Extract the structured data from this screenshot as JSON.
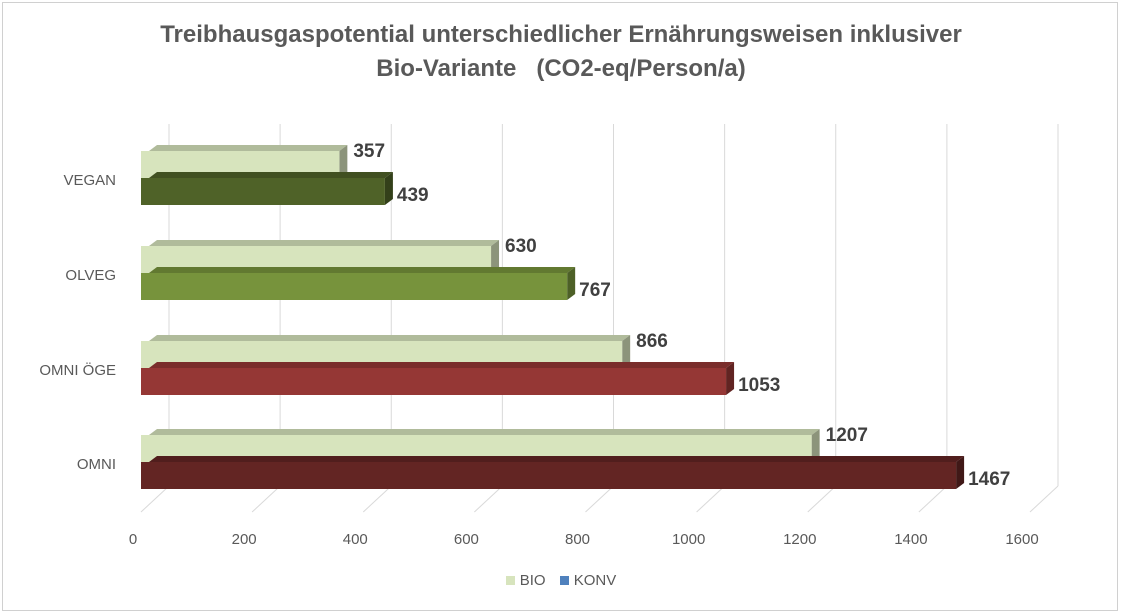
{
  "chart_data": {
    "type": "bar",
    "orientation": "horizontal",
    "title": "Treibhausgaspotential unterschiedlicher Ernährungsweisen inklusiver",
    "subtitle": "Bio-Variante   (CO2-eq/Person/a)",
    "categories": [
      "VEGAN",
      "OLVEG",
      "OMNI ÖGE",
      "OMNI"
    ],
    "series": [
      {
        "name": "BIO",
        "values": [
          357,
          630,
          866,
          1207
        ]
      },
      {
        "name": "KONV",
        "values": [
          439,
          767,
          1053,
          1467
        ]
      }
    ],
    "xlim": [
      0,
      1600
    ],
    "xticks": [
      "0",
      "200",
      "400",
      "600",
      "800",
      "1000",
      "1200",
      "1400",
      "1600"
    ],
    "data_labels": true,
    "grid": true,
    "three_d": true,
    "legend": "bottom"
  },
  "colors": {
    "bio": "#d7e4bd",
    "legend_bio": "#d7e4bd",
    "legend_konv": "#4f81bd",
    "konv_by_category": [
      "#4f6228",
      "#77933c",
      "#953735",
      "#632523"
    ]
  }
}
